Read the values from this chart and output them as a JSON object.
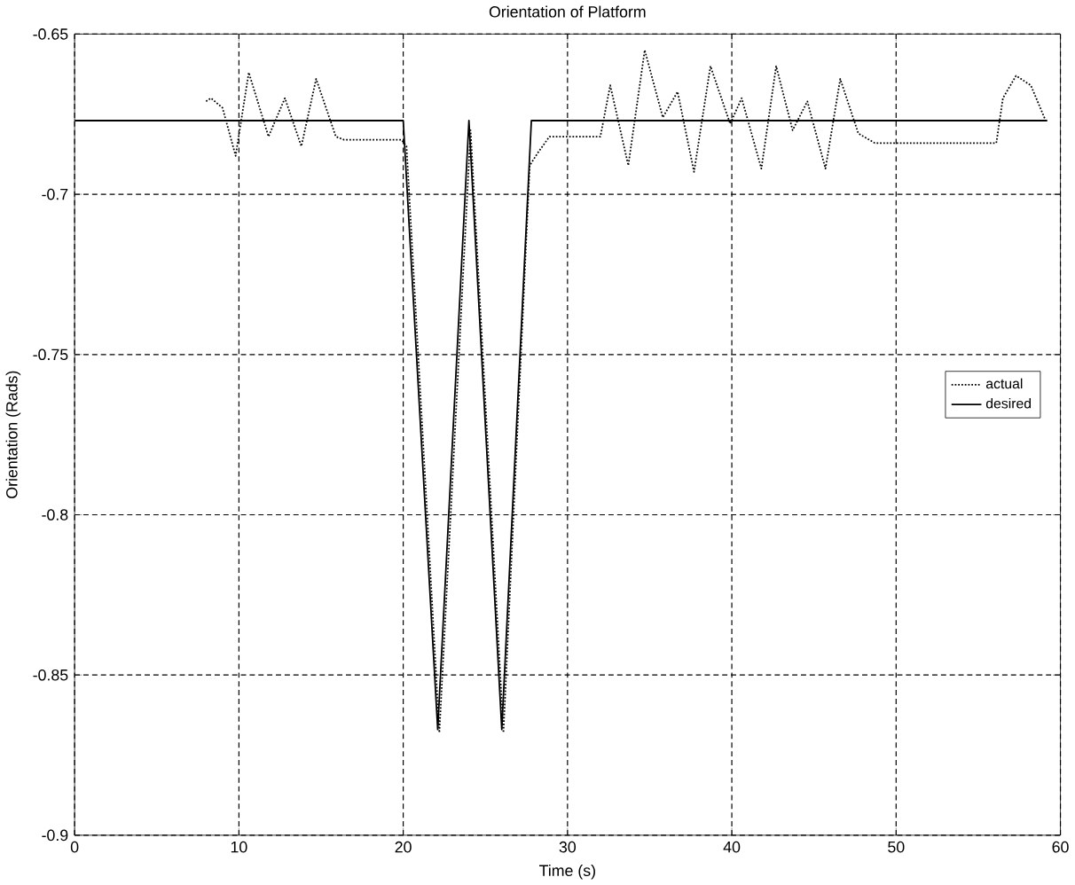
{
  "chart_data": {
    "type": "line",
    "title": "Orientation of Platform",
    "xlabel": "Time (s)",
    "ylabel": "Orientation (Rads)",
    "xlim": [
      0,
      60
    ],
    "ylim": [
      -0.9,
      -0.65
    ],
    "xticks": [
      0,
      10,
      20,
      30,
      40,
      50,
      60
    ],
    "yticks": [
      -0.9,
      -0.85,
      -0.8,
      -0.75,
      -0.7,
      -0.65
    ],
    "grid": true,
    "legend": "right",
    "series": [
      {
        "name": "actual",
        "color": "#000000",
        "line_style": "dotted",
        "x": [
          8.0,
          8.3,
          9.0,
          9.8,
          10.6,
          11.8,
          12.8,
          13.8,
          14.7,
          15.9,
          16.4,
          19.9,
          20.2,
          22.2,
          24.1,
          26.1,
          27.7,
          28.2,
          28.9,
          32.0,
          32.6,
          33.7,
          34.7,
          35.8,
          36.7,
          37.7,
          38.7,
          39.9,
          40.6,
          41.8,
          42.7,
          43.7,
          44.6,
          45.7,
          46.6,
          47.7,
          48.7,
          56.1,
          56.5,
          57.3,
          58.2,
          59.1
        ],
        "values": [
          -0.671,
          -0.67,
          -0.673,
          -0.688,
          -0.662,
          -0.682,
          -0.67,
          -0.685,
          -0.664,
          -0.682,
          -0.683,
          -0.683,
          -0.685,
          -0.868,
          -0.68,
          -0.868,
          -0.691,
          -0.687,
          -0.682,
          -0.682,
          -0.666,
          -0.691,
          -0.655,
          -0.676,
          -0.668,
          -0.693,
          -0.66,
          -0.678,
          -0.67,
          -0.692,
          -0.66,
          -0.68,
          -0.671,
          -0.692,
          -0.664,
          -0.681,
          -0.684,
          -0.684,
          -0.67,
          -0.663,
          -0.666,
          -0.677
        ]
      },
      {
        "name": "desired",
        "color": "#000000",
        "line_style": "solid",
        "x": [
          0,
          20.0,
          22.1,
          24.0,
          26.0,
          27.8,
          59.2
        ],
        "values": [
          -0.677,
          -0.677,
          -0.867,
          -0.677,
          -0.867,
          -0.677,
          -0.677
        ]
      }
    ]
  }
}
